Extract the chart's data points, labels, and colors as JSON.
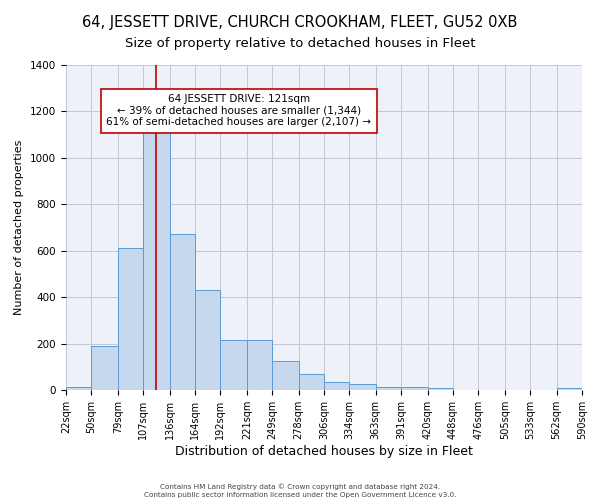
{
  "title": "64, JESSETT DRIVE, CHURCH CROOKHAM, FLEET, GU52 0XB",
  "subtitle": "Size of property relative to detached houses in Fleet",
  "xlabel": "Distribution of detached houses by size in Fleet",
  "ylabel": "Number of detached properties",
  "bin_edges": [
    22,
    50,
    79,
    107,
    136,
    164,
    192,
    221,
    249,
    278,
    306,
    334,
    363,
    391,
    420,
    448,
    476,
    505,
    533,
    562,
    590
  ],
  "bar_heights": [
    15,
    190,
    610,
    1110,
    670,
    430,
    215,
    215,
    125,
    70,
    35,
    25,
    15,
    12,
    10,
    0,
    0,
    0,
    0,
    10
  ],
  "bar_face_color": "#c5d8ed",
  "bar_edge_color": "#5b9bd5",
  "vline_x": 121,
  "vline_color": "#c00000",
  "annotation_line1": "64 JESSETT DRIVE: 121sqm",
  "annotation_line2": "← 39% of detached houses are smaller (1,344)",
  "annotation_line3": "61% of semi-detached houses are larger (2,107) →",
  "annotation_box_edge_color": "#c00000",
  "annotation_box_face_color": "white",
  "ylim": [
    0,
    1400
  ],
  "yticks": [
    0,
    200,
    400,
    600,
    800,
    1000,
    1200,
    1400
  ],
  "grid_color": "#c0c8d8",
  "background_color": "#eef2f8",
  "footer_line1": "Contains HM Land Registry data © Crown copyright and database right 2024.",
  "footer_line2": "Contains public sector information licensed under the Open Government Licence v3.0.",
  "title_fontsize": 10.5,
  "subtitle_fontsize": 9.5,
  "xlabel_fontsize": 9,
  "ylabel_fontsize": 8,
  "tick_label_fontsize": 7,
  "annotation_fontsize": 7.5
}
